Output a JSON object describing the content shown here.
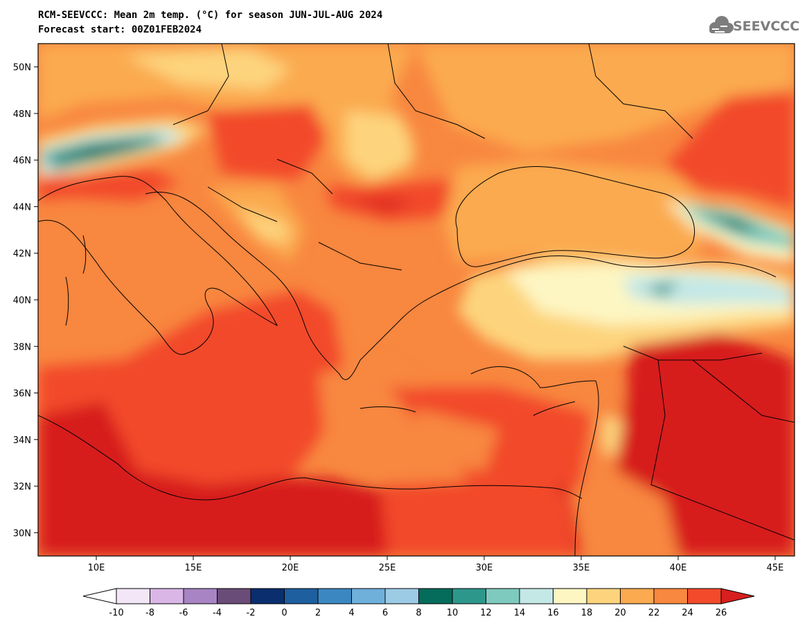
{
  "title": {
    "line1": "RCM-SEEVCCC: Mean 2m temp. (°C) for season JUN-JUL-AUG 2024",
    "line2": "Forecast start: 00Z01FEB2024"
  },
  "logo": {
    "text": "SEEVCCC",
    "icon": "cloud-icon"
  },
  "map": {
    "lon_range": [
      7,
      46
    ],
    "lat_range": [
      29,
      51
    ],
    "lon_ticks": [
      {
        "value": 10,
        "label": "10E"
      },
      {
        "value": 15,
        "label": "15E"
      },
      {
        "value": 20,
        "label": "20E"
      },
      {
        "value": 25,
        "label": "25E"
      },
      {
        "value": 30,
        "label": "30E"
      },
      {
        "value": 35,
        "label": "35E"
      },
      {
        "value": 40,
        "label": "40E"
      },
      {
        "value": 45,
        "label": "45E"
      }
    ],
    "lat_ticks": [
      {
        "value": 30,
        "label": "30N"
      },
      {
        "value": 32,
        "label": "32N"
      },
      {
        "value": 34,
        "label": "34N"
      },
      {
        "value": 36,
        "label": "36N"
      },
      {
        "value": 38,
        "label": "38N"
      },
      {
        "value": 40,
        "label": "40N"
      },
      {
        "value": 42,
        "label": "42N"
      },
      {
        "value": 44,
        "label": "44N"
      },
      {
        "value": 46,
        "label": "46N"
      },
      {
        "value": 48,
        "label": "48N"
      },
      {
        "value": 50,
        "label": "50N"
      }
    ]
  },
  "colorbar": {
    "labels": [
      "-10",
      "-8",
      "-6",
      "-4",
      "-2",
      "0",
      "2",
      "4",
      "6",
      "8",
      "10",
      "12",
      "14",
      "16",
      "18",
      "20",
      "22",
      "24",
      "26"
    ],
    "colors": [
      "#f2e6f7",
      "#d9b6e6",
      "#a884c4",
      "#6a4c78",
      "#0a2e6e",
      "#1e5fa0",
      "#3b87c2",
      "#6fb0db",
      "#9ccbe6",
      "#056b5a",
      "#2e978c",
      "#7fcabe",
      "#c4e8e6",
      "#fdf6c3",
      "#fdd47d",
      "#fbaa50",
      "#f8873f",
      "#f24a2a"
    ],
    "under_color": "#ffffff",
    "over_color": "#d71f1f"
  }
}
